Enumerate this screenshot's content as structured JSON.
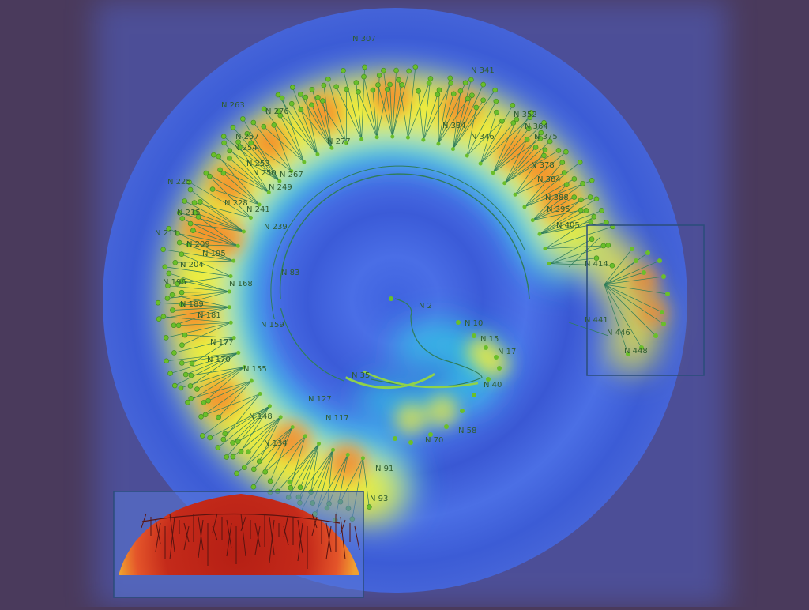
{
  "scene": {
    "background": "#4a3a5c",
    "heat_colors": [
      "#3a5bd9",
      "#2fe0e8",
      "#f7f03a",
      "#f58a2c",
      "#c8281a"
    ],
    "node_color": "#6abf2a",
    "link_color": "#2f7d5a",
    "label_color": "#2f5d2f"
  },
  "tree": {
    "labels": [
      "N 2",
      "N 10",
      "N 15",
      "N 17",
      "N 35",
      "N 40",
      "N 58",
      "N 70",
      "N 83",
      "N 91",
      "N 93",
      "N 117",
      "N 127",
      "N 134",
      "N 148",
      "N 155",
      "N 159",
      "N 168",
      "N 170",
      "N 177",
      "N 181",
      "N 189",
      "N 195",
      "N 196",
      "N 204",
      "N 209",
      "N 211",
      "N 215",
      "N 225",
      "N 228",
      "N 239",
      "N 241",
      "N 249",
      "N 250",
      "N 253",
      "N 254",
      "N 257",
      "N 263",
      "N 267",
      "N 276",
      "N 277",
      "N 307",
      "N 334",
      "N 341",
      "N 346",
      "N 352",
      "N 364",
      "N 375",
      "N 378",
      "N 384",
      "N 388",
      "N 395",
      "N 405",
      "N 414",
      "N 441",
      "N 446",
      "N 448"
    ]
  },
  "views": {
    "focus_box": "focus",
    "overview_box": "overview"
  }
}
